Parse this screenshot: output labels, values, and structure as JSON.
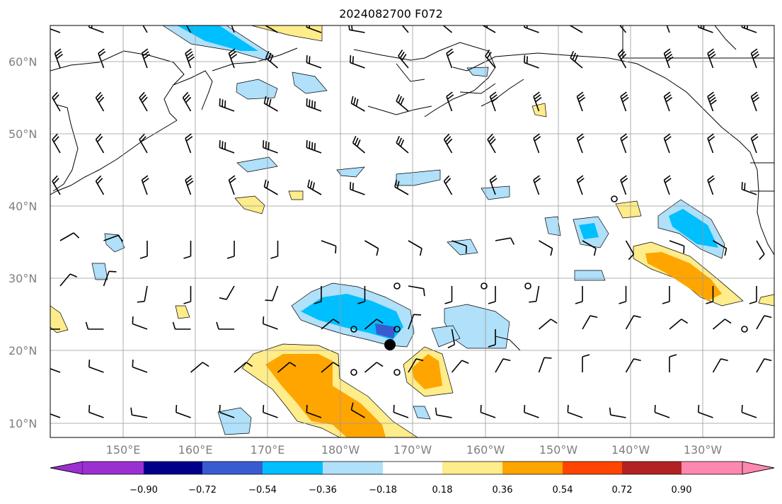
{
  "title": "2024082700 F072",
  "lat_labels": [
    "60°N",
    "50°N",
    "40°N",
    "30°N",
    "20°N",
    "10°N"
  ],
  "lon_labels": [
    "150°E",
    "160°E",
    "170°E",
    "180°W",
    "170°W",
    "160°W",
    "150°W",
    "140°W",
    "130°W"
  ],
  "colorbar": {
    "ticks": [
      "−0.90",
      "−0.72",
      "−0.54",
      "−0.36",
      "−0.18",
      "0.18",
      "0.36",
      "0.54",
      "0.72",
      "0.90"
    ],
    "colors": [
      "#9b30d0",
      "#00008b",
      "#3a5bd0",
      "#00bfff",
      "#b0e0fa",
      "#ffffff",
      "#ffec8b",
      "#ffa500",
      "#ff4500",
      "#b22222",
      "#ff88b0"
    ]
  }
}
